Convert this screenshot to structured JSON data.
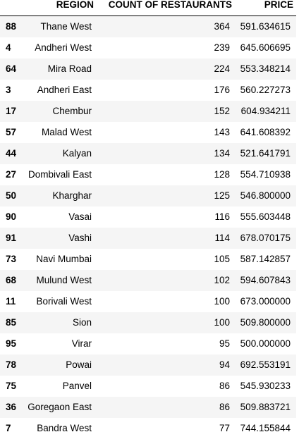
{
  "table": {
    "index_header": "",
    "columns": [
      "REGION",
      "COUNT OF RESTAURANTS",
      "PRICE"
    ],
    "rows": [
      {
        "idx": "88",
        "region": "Thane West",
        "count": "364",
        "price": "591.634615"
      },
      {
        "idx": "4",
        "region": "Andheri West",
        "count": "239",
        "price": "645.606695"
      },
      {
        "idx": "64",
        "region": "Mira Road",
        "count": "224",
        "price": "553.348214"
      },
      {
        "idx": "3",
        "region": "Andheri East",
        "count": "176",
        "price": "560.227273"
      },
      {
        "idx": "17",
        "region": "Chembur",
        "count": "152",
        "price": "604.934211"
      },
      {
        "idx": "57",
        "region": "Malad West",
        "count": "143",
        "price": "641.608392"
      },
      {
        "idx": "44",
        "region": "Kalyan",
        "count": "134",
        "price": "521.641791"
      },
      {
        "idx": "27",
        "region": "Dombivali East",
        "count": "128",
        "price": "554.710938"
      },
      {
        "idx": "50",
        "region": "Kharghar",
        "count": "125",
        "price": "546.800000"
      },
      {
        "idx": "90",
        "region": "Vasai",
        "count": "116",
        "price": "555.603448"
      },
      {
        "idx": "91",
        "region": "Vashi",
        "count": "114",
        "price": "678.070175"
      },
      {
        "idx": "73",
        "region": "Navi Mumbai",
        "count": "105",
        "price": "587.142857"
      },
      {
        "idx": "68",
        "region": "Mulund West",
        "count": "102",
        "price": "594.607843"
      },
      {
        "idx": "11",
        "region": "Borivali West",
        "count": "100",
        "price": "673.000000"
      },
      {
        "idx": "85",
        "region": "Sion",
        "count": "100",
        "price": "509.800000"
      },
      {
        "idx": "95",
        "region": "Virar",
        "count": "95",
        "price": "500.000000"
      },
      {
        "idx": "78",
        "region": "Powai",
        "count": "94",
        "price": "692.553191"
      },
      {
        "idx": "75",
        "region": "Panvel",
        "count": "86",
        "price": "545.930233"
      },
      {
        "idx": "36",
        "region": "Goregaon East",
        "count": "86",
        "price": "509.883721"
      },
      {
        "idx": "7",
        "region": "Bandra West",
        "count": "77",
        "price": "744.155844"
      }
    ]
  },
  "colors": {
    "odd_row": "#f5f5f5",
    "even_row": "#ffffff",
    "header_rule": "#000000"
  }
}
